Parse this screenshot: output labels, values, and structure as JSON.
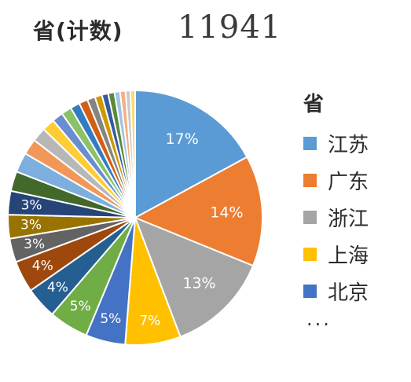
{
  "header": {
    "title": "省(计数)",
    "total": "11941"
  },
  "legend": {
    "title": "省",
    "items": [
      {
        "label": "江苏",
        "color": "#5b9bd5"
      },
      {
        "label": "广东",
        "color": "#ed7d31"
      },
      {
        "label": "浙江",
        "color": "#a5a5a5"
      },
      {
        "label": "上海",
        "color": "#ffc000"
      },
      {
        "label": "北京",
        "color": "#4472c4"
      }
    ],
    "more": "..."
  },
  "chart_data": {
    "type": "pie",
    "title": "省(计数)",
    "total": 11941,
    "legend_position": "right",
    "slices": [
      {
        "label": "江苏",
        "value": 17,
        "color": "#5b9bd5",
        "data_label": "17%"
      },
      {
        "label": "广东",
        "value": 14,
        "color": "#ed7d31",
        "data_label": "14%"
      },
      {
        "label": "浙江",
        "value": 13,
        "color": "#a5a5a5",
        "data_label": "13%"
      },
      {
        "label": "上海",
        "value": 7,
        "color": "#ffc000",
        "data_label": "7%"
      },
      {
        "label": "北京",
        "value": 5,
        "color": "#4472c4",
        "data_label": "5%"
      },
      {
        "label": "",
        "value": 5,
        "color": "#70ad47",
        "data_label": "5%"
      },
      {
        "label": "",
        "value": 4,
        "color": "#255e91",
        "data_label": "4%"
      },
      {
        "label": "",
        "value": 4,
        "color": "#9e480e",
        "data_label": "4%"
      },
      {
        "label": "",
        "value": 3,
        "color": "#636363",
        "data_label": "3%"
      },
      {
        "label": "",
        "value": 3,
        "color": "#997300",
        "data_label": "3%"
      },
      {
        "label": "",
        "value": 3,
        "color": "#264478",
        "data_label": "3%"
      },
      {
        "label": "",
        "value": 2.5,
        "color": "#43682b",
        "data_label": ""
      },
      {
        "label": "",
        "value": 2.5,
        "color": "#7cafdd",
        "data_label": ""
      },
      {
        "label": "",
        "value": 2,
        "color": "#f1975a",
        "data_label": ""
      },
      {
        "label": "",
        "value": 1.8,
        "color": "#b7b7b7",
        "data_label": ""
      },
      {
        "label": "",
        "value": 1.6,
        "color": "#ffcd33",
        "data_label": ""
      },
      {
        "label": "",
        "value": 1.4,
        "color": "#698ed0",
        "data_label": ""
      },
      {
        "label": "",
        "value": 1.3,
        "color": "#8cc168",
        "data_label": ""
      },
      {
        "label": "",
        "value": 1.2,
        "color": "#327dc2",
        "data_label": ""
      },
      {
        "label": "",
        "value": 1.1,
        "color": "#d26012",
        "data_label": ""
      },
      {
        "label": "",
        "value": 1.0,
        "color": "#848484",
        "data_label": ""
      },
      {
        "label": "",
        "value": 0.9,
        "color": "#cc9a00",
        "data_label": ""
      },
      {
        "label": "",
        "value": 0.8,
        "color": "#335aa1",
        "data_label": ""
      },
      {
        "label": "",
        "value": 0.8,
        "color": "#5a8a39",
        "data_label": ""
      },
      {
        "label": "",
        "value": 0.7,
        "color": "#9dc3e6",
        "data_label": ""
      },
      {
        "label": "",
        "value": 0.7,
        "color": "#f4b183",
        "data_label": ""
      },
      {
        "label": "",
        "value": 0.6,
        "color": "#c9c9c9",
        "data_label": ""
      },
      {
        "label": "",
        "value": 0.6,
        "color": "#ffd966",
        "data_label": ""
      }
    ]
  }
}
